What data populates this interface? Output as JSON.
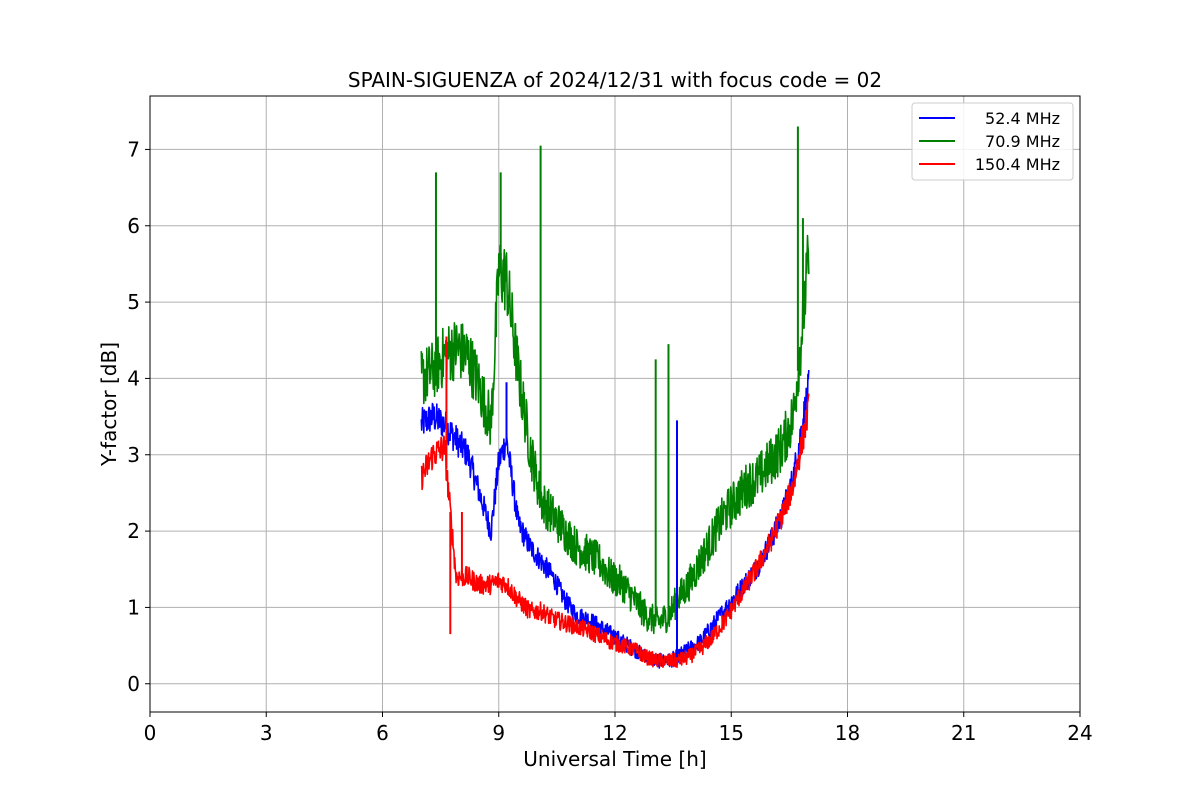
{
  "chart_data": {
    "type": "line",
    "title": "SPAIN-SIGUENZA of 2024/12/31 with focus code = 02",
    "xlabel": "Universal Time [h]",
    "ylabel": "Y-factor [dB]",
    "xlim": [
      0,
      24
    ],
    "ylim": [
      -0.37,
      7.7
    ],
    "xticks": [
      "0",
      "3",
      "6",
      "9",
      "12",
      "15",
      "18",
      "21",
      "24"
    ],
    "yticks": [
      "0",
      "1",
      "2",
      "3",
      "4",
      "5",
      "6",
      "7"
    ],
    "grid": true,
    "legend_position": "top-right",
    "series": [
      {
        "name": "52.4 MHz",
        "color": "#0000ff",
        "x": [
          7.0,
          7.3,
          7.6,
          7.9,
          8.2,
          8.5,
          8.8,
          9.0,
          9.2,
          9.5,
          9.8,
          10.1,
          10.4,
          10.7,
          11.0,
          11.3,
          11.6,
          11.9,
          12.2,
          12.5,
          12.8,
          13.1,
          13.4,
          13.6,
          13.9,
          14.2,
          14.5,
          14.8,
          15.1,
          15.4,
          15.7,
          16.0,
          16.3,
          16.6,
          16.8,
          17.0
        ],
        "values": [
          3.4,
          3.5,
          3.4,
          3.2,
          3.0,
          2.5,
          2.0,
          2.9,
          3.2,
          2.1,
          1.8,
          1.6,
          1.4,
          1.1,
          0.9,
          0.85,
          0.75,
          0.65,
          0.55,
          0.45,
          0.35,
          0.3,
          0.3,
          0.35,
          0.45,
          0.55,
          0.75,
          0.95,
          1.15,
          1.35,
          1.55,
          1.85,
          2.2,
          2.7,
          3.3,
          3.9
        ]
      },
      {
        "name": "70.9 MHz",
        "color": "#008000",
        "x": [
          7.0,
          7.3,
          7.6,
          7.9,
          8.2,
          8.5,
          8.8,
          9.0,
          9.2,
          9.5,
          9.8,
          10.1,
          10.4,
          10.7,
          11.0,
          11.3,
          11.6,
          11.9,
          12.2,
          12.5,
          12.8,
          13.1,
          13.4,
          13.6,
          13.9,
          14.2,
          14.5,
          14.8,
          15.1,
          15.4,
          15.7,
          16.0,
          16.3,
          16.6,
          16.8,
          17.0
        ],
        "values": [
          4.0,
          4.1,
          4.3,
          4.4,
          4.3,
          3.9,
          3.4,
          5.4,
          5.3,
          4.1,
          3.1,
          2.4,
          2.2,
          2.0,
          1.8,
          1.7,
          1.6,
          1.4,
          1.3,
          1.1,
          0.9,
          0.8,
          0.9,
          1.1,
          1.3,
          1.6,
          1.9,
          2.2,
          2.4,
          2.6,
          2.7,
          2.9,
          3.1,
          3.5,
          4.5,
          5.6
        ]
      },
      {
        "name": "150.4 MHz",
        "color": "#ff0000",
        "x": [
          7.0,
          7.3,
          7.6,
          7.9,
          8.2,
          8.5,
          8.8,
          9.0,
          9.2,
          9.5,
          9.8,
          10.1,
          10.4,
          10.7,
          11.0,
          11.3,
          11.6,
          11.9,
          12.2,
          12.5,
          12.8,
          13.1,
          13.4,
          13.6,
          13.9,
          14.2,
          14.5,
          14.8,
          15.1,
          15.4,
          15.7,
          16.0,
          16.3,
          16.6,
          16.8,
          17.0
        ],
        "values": [
          2.7,
          3.0,
          3.1,
          1.4,
          1.4,
          1.3,
          1.3,
          1.35,
          1.3,
          1.1,
          0.95,
          0.95,
          0.85,
          0.8,
          0.75,
          0.7,
          0.62,
          0.55,
          0.5,
          0.45,
          0.35,
          0.3,
          0.3,
          0.3,
          0.35,
          0.45,
          0.6,
          0.8,
          1.05,
          1.3,
          1.55,
          1.85,
          2.2,
          2.6,
          3.1,
          3.6
        ]
      }
    ],
    "annotations_spikes": [
      {
        "series": "70.9 MHz",
        "x": 7.38,
        "y": 6.7
      },
      {
        "series": "70.9 MHz",
        "x": 9.05,
        "y": 6.7
      },
      {
        "series": "70.9 MHz",
        "x": 10.08,
        "y": 7.05
      },
      {
        "series": "70.9 MHz",
        "x": 13.05,
        "y": 4.25
      },
      {
        "series": "70.9 MHz",
        "x": 13.38,
        "y": 4.45
      },
      {
        "series": "70.9 MHz",
        "x": 16.72,
        "y": 7.3
      },
      {
        "series": "70.9 MHz",
        "x": 16.85,
        "y": 6.1
      },
      {
        "series": "52.4 MHz",
        "x": 13.6,
        "y": 3.45
      },
      {
        "series": "52.4 MHz",
        "x": 9.2,
        "y": 3.95
      },
      {
        "series": "150.4 MHz",
        "x": 7.65,
        "y": 4.55
      },
      {
        "series": "150.4 MHz",
        "x": 7.75,
        "y": 0.65
      },
      {
        "series": "150.4 MHz",
        "x": 8.05,
        "y": 2.25
      }
    ]
  }
}
